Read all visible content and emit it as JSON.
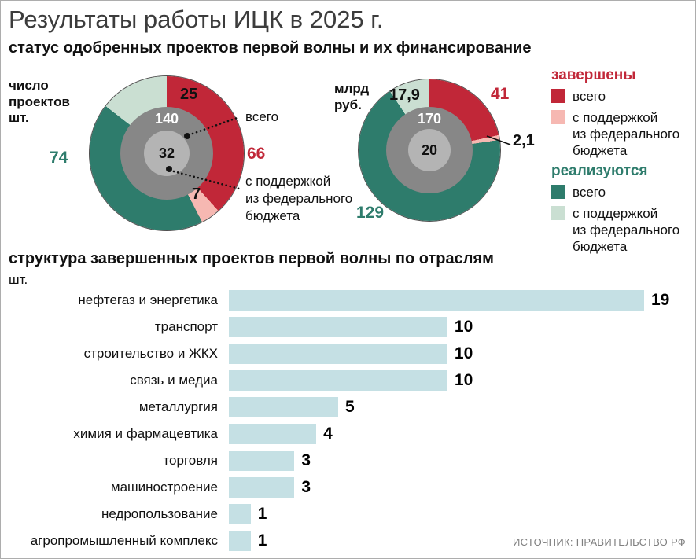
{
  "page": {
    "title": "Результаты работы ИЦК в 2025 г.",
    "subtitle": "статус одобренных проектов первой волны и их финансирование",
    "source": "ИСТОЧНИК: ПРАВИТЕЛЬСТВО РФ"
  },
  "colors": {
    "completed_total": "#c12738",
    "completed_support": "#f6b8b2",
    "active_total": "#2e7c6c",
    "active_support": "#cadfd2",
    "bar": "#c5e0e4",
    "disc_dark": "#878787",
    "disc_light": "#b4b4b4"
  },
  "legend": {
    "completed_header": "завершены",
    "active_header": "реализуются",
    "total_label": "всего",
    "support_label": "с поддержкой\nиз федерального\nбюджета"
  },
  "chart_data": [
    {
      "type": "pie",
      "panel_label": "число\nпроектов\nшт.",
      "center_total": "140",
      "center_support": "32",
      "callout_total": "всего",
      "callout_support": "с поддержкой\nиз федерального\nбюджета",
      "segments": [
        {
          "name": "завершены всего",
          "value": 66,
          "display": "66",
          "color_key": "completed_total"
        },
        {
          "name": "завершены с поддержкой из федерального бюджета",
          "value": 7,
          "display": "7",
          "color_key": "completed_support"
        },
        {
          "name": "реализуются всего",
          "value": 74,
          "display": "74",
          "color_key": "active_total"
        },
        {
          "name": "реализуются с поддержкой из федерального бюджета",
          "value": 25,
          "display": "25",
          "color_key": "active_support"
        }
      ]
    },
    {
      "type": "pie",
      "panel_label": "млрд\nруб.",
      "center_total": "170",
      "center_support": "20",
      "segments": [
        {
          "name": "завершены всего",
          "value": 41,
          "display": "41",
          "color_key": "completed_total"
        },
        {
          "name": "завершены с поддержкой из федерального бюджета",
          "value": 2.1,
          "display": "2,1",
          "color_key": "completed_support"
        },
        {
          "name": "реализуются всего",
          "value": 129,
          "display": "129",
          "color_key": "active_total"
        },
        {
          "name": "реализуются с поддержкой из федерального бюджета",
          "value": 17.9,
          "display": "17,9",
          "color_key": "active_support"
        }
      ]
    },
    {
      "type": "bar",
      "title": "структура завершенных проектов первой волны по отраслям",
      "units": "шт.",
      "categories": [
        "нефтегаз и энергетика",
        "транспорт",
        "строительство и ЖКХ",
        "связь и медиа",
        "металлургия",
        "химия и фармацевтика",
        "торговля",
        "машиностроение",
        "недропользование",
        "агропромышленный комплекс"
      ],
      "values": [
        19,
        10,
        10,
        10,
        5,
        4,
        3,
        3,
        1,
        1
      ],
      "xlim": [
        0,
        19
      ]
    }
  ]
}
